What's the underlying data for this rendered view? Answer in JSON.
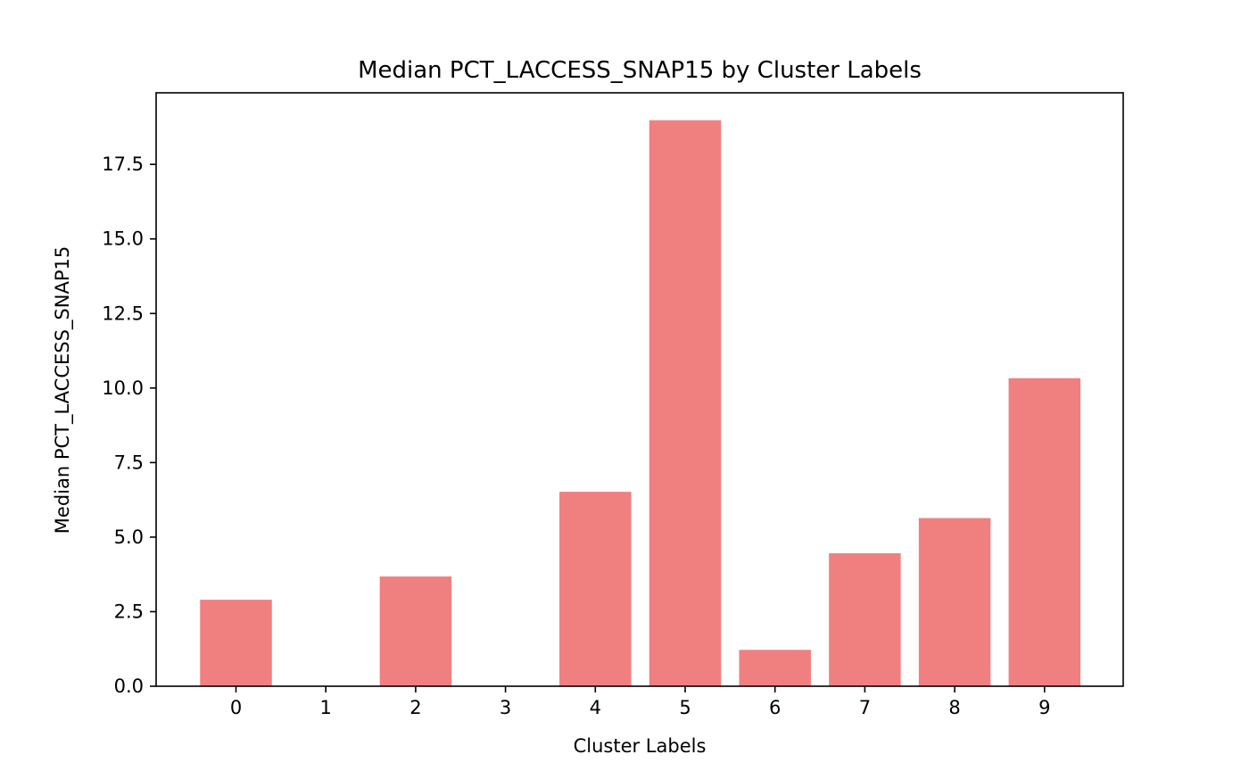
{
  "chart_data": {
    "type": "bar",
    "title": "Median PCT_LACCESS_SNAP15 by Cluster Labels",
    "xlabel": "Cluster Labels",
    "ylabel": "Median PCT_LACCESS_SNAP15",
    "categories": [
      "0",
      "1",
      "2",
      "3",
      "4",
      "5",
      "6",
      "7",
      "8",
      "9"
    ],
    "values": [
      2.9,
      0.0,
      3.68,
      0.0,
      6.52,
      18.98,
      1.22,
      4.46,
      5.64,
      10.33
    ],
    "ylim": [
      0,
      19.9
    ],
    "yticks": [
      0.0,
      2.5,
      5.0,
      7.5,
      10.0,
      12.5,
      15.0,
      17.5
    ],
    "ytick_labels": [
      "0.0",
      "2.5",
      "5.0",
      "7.5",
      "10.0",
      "12.5",
      "15.0",
      "17.5"
    ],
    "bar_color": "#f08080",
    "grid": false,
    "legend": "none"
  }
}
